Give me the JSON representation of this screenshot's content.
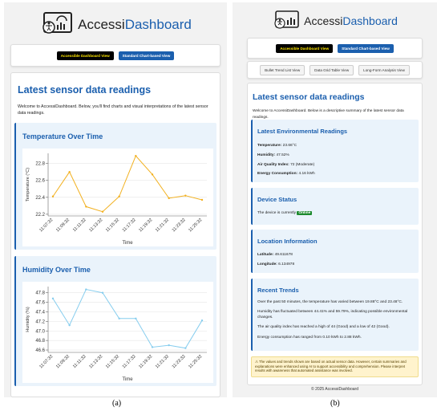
{
  "panel_a": {
    "caption": "(a)",
    "logo": {
      "part1": "Accessi",
      "part2": "Dashboard"
    },
    "buttons": [
      "Accessible Dashboard View",
      "Standard Chart-based View"
    ],
    "heading": "Latest sensor data readings",
    "intro": "Welcome to AccessiDashboard. Below, you'll find charts and visual interpretations of the latest sensor data readings.",
    "charts": [
      {
        "type": "line",
        "title": "Temperature Over Time",
        "x_label": "Time",
        "y_label": "Temperature (°C)",
        "color": "#f2b01e",
        "categories": [
          "11:07:32",
          "11:09:32",
          "11:11:32",
          "11:13:32",
          "11:15:32",
          "11:17:32",
          "11:19:32",
          "11:21:32",
          "11:23:32",
          "11:25:32"
        ],
        "values": [
          22.41,
          22.7,
          22.29,
          22.23,
          22.41,
          22.89,
          22.67,
          22.39,
          22.42,
          22.37
        ],
        "ylim": [
          22.18,
          22.92
        ],
        "yticks": [
          22.2,
          22.4,
          22.6,
          22.8
        ],
        "grid": true
      },
      {
        "type": "line",
        "title": "Humidity Over Time",
        "x_label": "Time",
        "y_label": "Humidity (%)",
        "color": "#86cdee",
        "categories": [
          "11:07:32",
          "11:09:32",
          "11:11:32",
          "11:13:32",
          "11:15:32",
          "11:17:32",
          "11:19:32",
          "11:21:32",
          "11:23:32",
          "11:25:32"
        ],
        "values": [
          47.68,
          47.12,
          47.87,
          47.8,
          47.26,
          47.26,
          46.66,
          46.7,
          46.64,
          47.22
        ],
        "ylim": [
          46.55,
          47.93
        ],
        "yticks": [
          46.6,
          46.8,
          {
            "value": 47,
            "label": "47.0"
          },
          47.2,
          47.4,
          47.6,
          47.8
        ],
        "grid": true
      }
    ]
  },
  "panel_b": {
    "caption": "(b)",
    "logo": {
      "part1": "Accessi",
      "part2": "Dashboard"
    },
    "buttons": [
      "Accessible Dashboard View",
      "Standard Chart-based View"
    ],
    "subviews": [
      "Bullet Trend List View",
      "Data Grid Table View",
      "Long-Form Analysis View"
    ],
    "heading": "Latest sensor data readings",
    "intro": "Welcome to AccessiDashboard. Below is a descriptive summary of the latest sensor data readings.",
    "readings": {
      "title": "Latest Environmental Readings",
      "items": [
        {
          "label": "Temperature:",
          "value": "23.66°C"
        },
        {
          "label": "Humidity:",
          "value": "47.52%"
        },
        {
          "label": "Air Quality Index:",
          "value": "72 (Moderate)"
        },
        {
          "label": "Energy Consumption:",
          "value": "4.16 kWh"
        }
      ]
    },
    "status": {
      "title": "Device Status",
      "text": "The device is currently",
      "badge": "Online"
    },
    "location": {
      "title": "Location Information",
      "items": [
        {
          "label": "Latitude:",
          "value": "49.611678"
        },
        {
          "label": "Longitude:",
          "value": "6.134978"
        }
      ]
    },
    "trends": {
      "title": "Recent Trends",
      "items": [
        "Over the past 50 minutes, the temperature has varied between 19.88°C and 23.48°C.",
        "Humidity has fluctuated between 44.41% and 59.79%, indicating possible environmental changes.",
        "The air quality index has reached a high of 44 (Good) and a low of 42 (Good).",
        "Energy consumption has ranged from 0.10 kWh to 2.88 kWh."
      ]
    },
    "warning": "The values and trends shown are based on actual sensor data. However, certain summaries and explanations were enhanced using AI to support accessibility and comprehension. Please interpret results with awareness that automated assistance was involved.",
    "footer": "© 2025 AccessiDashboard"
  }
}
